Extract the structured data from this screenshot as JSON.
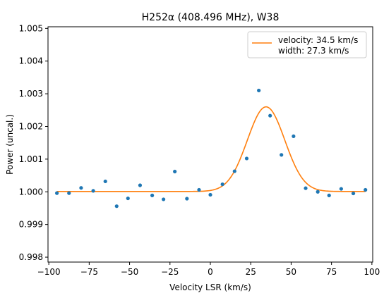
{
  "chart_data": {
    "type": "scatter",
    "title": "H252α (408.496 MHz), W38",
    "xlabel": "Velocity LSR (km/s)",
    "ylabel": "Power (uncal.)",
    "xlim": [
      -100.5,
      100.5
    ],
    "ylim": [
      0.99785,
      1.00505
    ],
    "xticks": [
      -100,
      -75,
      -50,
      -25,
      0,
      25,
      50,
      75,
      100
    ],
    "xtick_labels": [
      "−100",
      "−75",
      "−50",
      "−25",
      "0",
      "25",
      "50",
      "75",
      "100"
    ],
    "yticks": [
      0.998,
      0.999,
      1.0,
      1.001,
      1.002,
      1.003,
      1.004,
      1.005
    ],
    "ytick_labels": [
      "0.998",
      "0.999",
      "1.000",
      "1.001",
      "1.002",
      "1.003",
      "1.004",
      "1.005"
    ],
    "grid": false,
    "legend_position": "top-right",
    "colors": {
      "points": "#1f77b4",
      "fit": "#ff7f0e"
    },
    "points": {
      "x": [
        -95,
        -87.5,
        -80,
        -72.5,
        -65,
        -58,
        -51,
        -43.5,
        -36,
        -29,
        -22,
        -14.5,
        -7,
        0,
        7.5,
        15,
        22.5,
        30,
        37,
        44,
        51.5,
        59,
        66.5,
        73.5,
        81,
        88.5,
        96
      ],
      "y": [
        0.99996,
        0.99996,
        1.00012,
        1.00003,
        1.00032,
        0.99956,
        0.9998,
        1.0002,
        0.99989,
        0.99977,
        1.00062,
        0.99979,
        1.00006,
        0.99991,
        1.00023,
        1.00063,
        1.00102,
        1.0031,
        1.00233,
        1.00113,
        1.0017,
        1.00011,
        1.0,
        0.99989,
        1.00009,
        0.99995,
        1.00006
      ]
    },
    "fit": {
      "name": "velocity: 34.5 km/s\nwidth: 27.3 km/s",
      "legend_lines": [
        "velocity: 34.5 km/s",
        "width: 27.3 km/s"
      ],
      "baseline": 1.00001,
      "amplitude": 0.00259,
      "center": 34.5,
      "fwhm": 27.3,
      "x_start": -95,
      "x_end": 96
    }
  }
}
